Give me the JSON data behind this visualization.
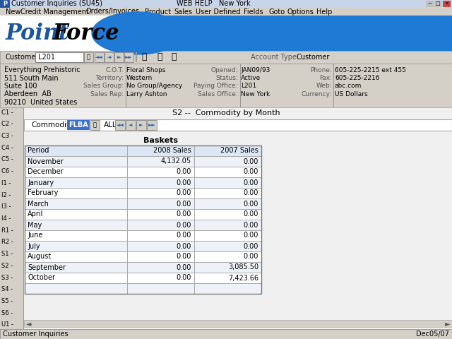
{
  "title_bar": "Customer Inquiries (SU45)",
  "title_bar_center": "WEB HELP   New York",
  "menu_items": [
    "New",
    "Credit Management",
    "Orders/Invoices",
    "Product",
    "Sales",
    "User Defined",
    "Fields",
    "Goto",
    "Options",
    "Help"
  ],
  "customer_label": "Customer",
  "customer_id": "L201",
  "account_type_label": "Account Type:",
  "account_type": "Customer",
  "address_lines": [
    "Everything Prehistoric",
    "511 South Main",
    "Suite 100",
    "Aberdeen  AB",
    "90210  United States"
  ],
  "cot_label": "C.O.T.",
  "cot_val": "Floral Shops",
  "territory_label": "Territory:",
  "territory_val": "Western",
  "salesgroup_label": "Sales Group:",
  "salesgroup_val": "No Group/Agency",
  "salesrep_label": "Sales Rep:",
  "salesrep_val": "Larry Ashton",
  "opened_label": "Opened:",
  "opened_val": "JAN09/93",
  "status_label": "Status:",
  "status_val": "Active",
  "payingoffice_label": "Paying Office:",
  "payingoffice_val": "L201",
  "salesoffice_label": "Sales Office:",
  "salesoffice_val": "New York",
  "phone_label": "Phone:",
  "phone_val": "605-225-2215 ext 455",
  "fax_label": "Fax:",
  "fax_val": "605-225-2216",
  "web_label": "Web:",
  "web_val": "abc.com",
  "currency_label": "Currency:",
  "currency_val": "US Dollars",
  "side_codes": [
    "C1",
    "C2",
    "C3",
    "C4",
    "C5",
    "C6",
    "I1",
    "I2",
    "I3",
    "I4",
    "R1",
    "R2",
    "S1",
    "S2",
    "S3",
    "S4",
    "S5",
    "S6",
    "U1"
  ],
  "screen_title": "S2 --  Commodity by Month",
  "commodity_label": "Commodity",
  "commodity_val": "FLBA",
  "all_label": "ALL",
  "basket_label": "Baskets",
  "col_headers": [
    "Period",
    "2008 Sales",
    "2007 Sales"
  ],
  "rows": [
    [
      "November",
      "4,132.05",
      "0.00"
    ],
    [
      "December",
      "0.00",
      "0.00"
    ],
    [
      "January",
      "0.00",
      "0.00"
    ],
    [
      "February",
      "0.00",
      "0.00"
    ],
    [
      "March",
      "0.00",
      "0.00"
    ],
    [
      "April",
      "0.00",
      "0.00"
    ],
    [
      "May",
      "0.00",
      "0.00"
    ],
    [
      "June",
      "0.00",
      "0.00"
    ],
    [
      "July",
      "0.00",
      "0.00"
    ],
    [
      "August",
      "0.00",
      "0.00"
    ],
    [
      "September",
      "0.00",
      "3,085.50"
    ],
    [
      "October",
      "0.00",
      "7,423.66"
    ],
    [
      "",
      "",
      ""
    ]
  ],
  "status_bar_left": "Customer Inquiries",
  "status_bar_right": "Dec05/07",
  "bg_color": "#d4d0c8",
  "titlebar_bg": "#c8d0e0",
  "table_header_bg": "#dce6f5",
  "table_row_even": "#eef2f8",
  "table_row_odd": "#ffffff",
  "table_border": "#aaaaaa",
  "commodity_box_bg": "#3a6fcc",
  "commodity_box_fg": "#ffffff",
  "screen_bg": "#f0f0f0",
  "logo_area_bg": "#ffffff",
  "blue_header_bg": "#1e7ad4"
}
